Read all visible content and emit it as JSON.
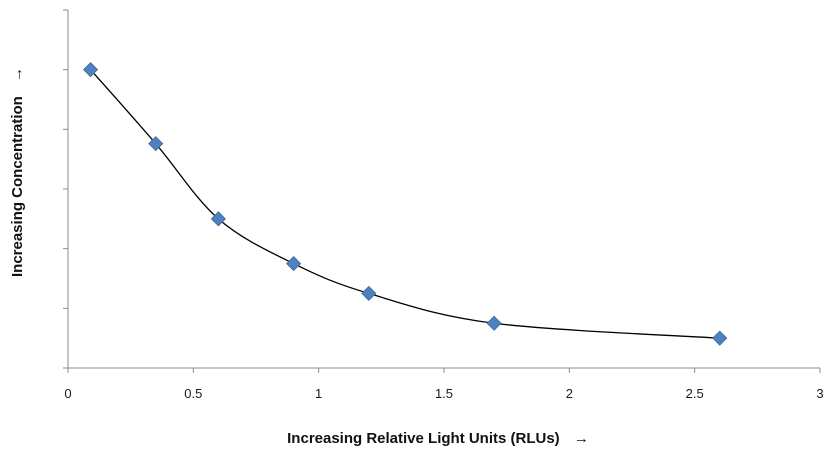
{
  "chart_data": {
    "type": "scatter",
    "title": "",
    "xlabel": "Increasing Relative Light Units (RLUs)",
    "ylabel": "Increasing Concentration",
    "arrow_symbol": "→",
    "xlim": [
      0,
      3
    ],
    "ylim": [
      0,
      6
    ],
    "x_ticks": [
      0,
      0.5,
      1,
      1.5,
      2,
      2.5,
      3
    ],
    "x_tick_labels": [
      "0",
      "0.5",
      "1",
      "1.5",
      "2",
      "2.5",
      "3"
    ],
    "y_ticks": [
      0,
      1,
      2,
      3,
      4,
      5,
      6
    ],
    "y_tick_labels_shown": false,
    "grid": false,
    "legend": "none",
    "trendline": "smooth curve through points",
    "marker_shape": "diamond",
    "marker_color": "#4f81bd",
    "series": [
      {
        "x": [
          0.09,
          0.35,
          0.6,
          0.9,
          1.2,
          1.7,
          2.6
        ],
        "y": [
          5.0,
          3.76,
          2.5,
          1.75,
          1.25,
          0.75,
          0.5
        ]
      }
    ]
  }
}
